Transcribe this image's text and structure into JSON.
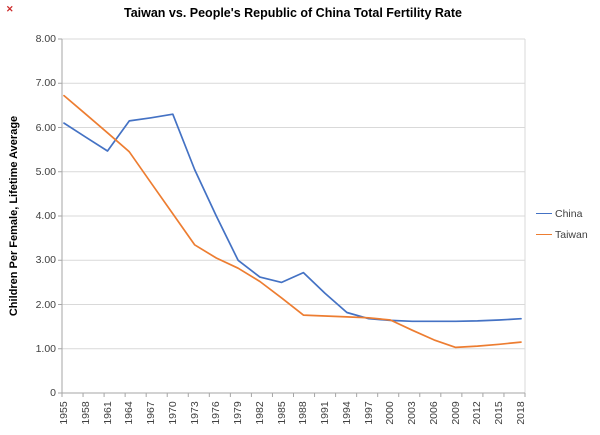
{
  "page": {
    "broken_image_marker": "✕"
  },
  "chart_data": {
    "type": "line",
    "title": "Taiwan vs. People's Republic of China Total Fertility Rate",
    "ylabel": "Children Per Female, Lifetime Average",
    "xlabel": "",
    "ylim": [
      0,
      8
    ],
    "ytick_values": [
      8,
      7,
      6,
      5,
      4,
      3,
      2,
      1,
      0
    ],
    "ytick_labels": [
      "8.00",
      "7.00",
      "6.00",
      "5.00",
      "4.00",
      "3.00",
      "2.00",
      "1.00",
      "0"
    ],
    "grid": "horizontal",
    "legend_position": "right",
    "categories": [
      "1955",
      "1958",
      "1961",
      "1964",
      "1967",
      "1970",
      "1973",
      "1976",
      "1979",
      "1982",
      "1985",
      "1988",
      "1991",
      "1994",
      "1997",
      "2000",
      "2003",
      "2006",
      "2009",
      "2012",
      "2015",
      "2018"
    ],
    "series": [
      {
        "name": "China",
        "color": "#4472C4",
        "values": [
          6.1,
          5.78,
          5.47,
          6.15,
          6.22,
          6.3,
          5.05,
          4.0,
          3.0,
          2.62,
          2.5,
          2.72,
          2.25,
          1.82,
          1.68,
          1.64,
          1.62,
          1.62,
          1.62,
          1.63,
          1.65,
          1.68
        ]
      },
      {
        "name": "Taiwan",
        "color": "#ED7D31",
        "values": [
          6.72,
          6.3,
          5.88,
          5.45,
          4.75,
          4.05,
          3.35,
          3.05,
          2.82,
          2.52,
          2.15,
          1.76,
          1.74,
          1.72,
          1.7,
          1.65,
          1.42,
          1.2,
          1.03,
          1.06,
          1.1,
          1.15
        ]
      }
    ],
    "colors": {
      "gridline": "#D9D9D9",
      "axis": "#A6A6A6",
      "tick_text": "#404040",
      "title_text": "#000000"
    }
  }
}
